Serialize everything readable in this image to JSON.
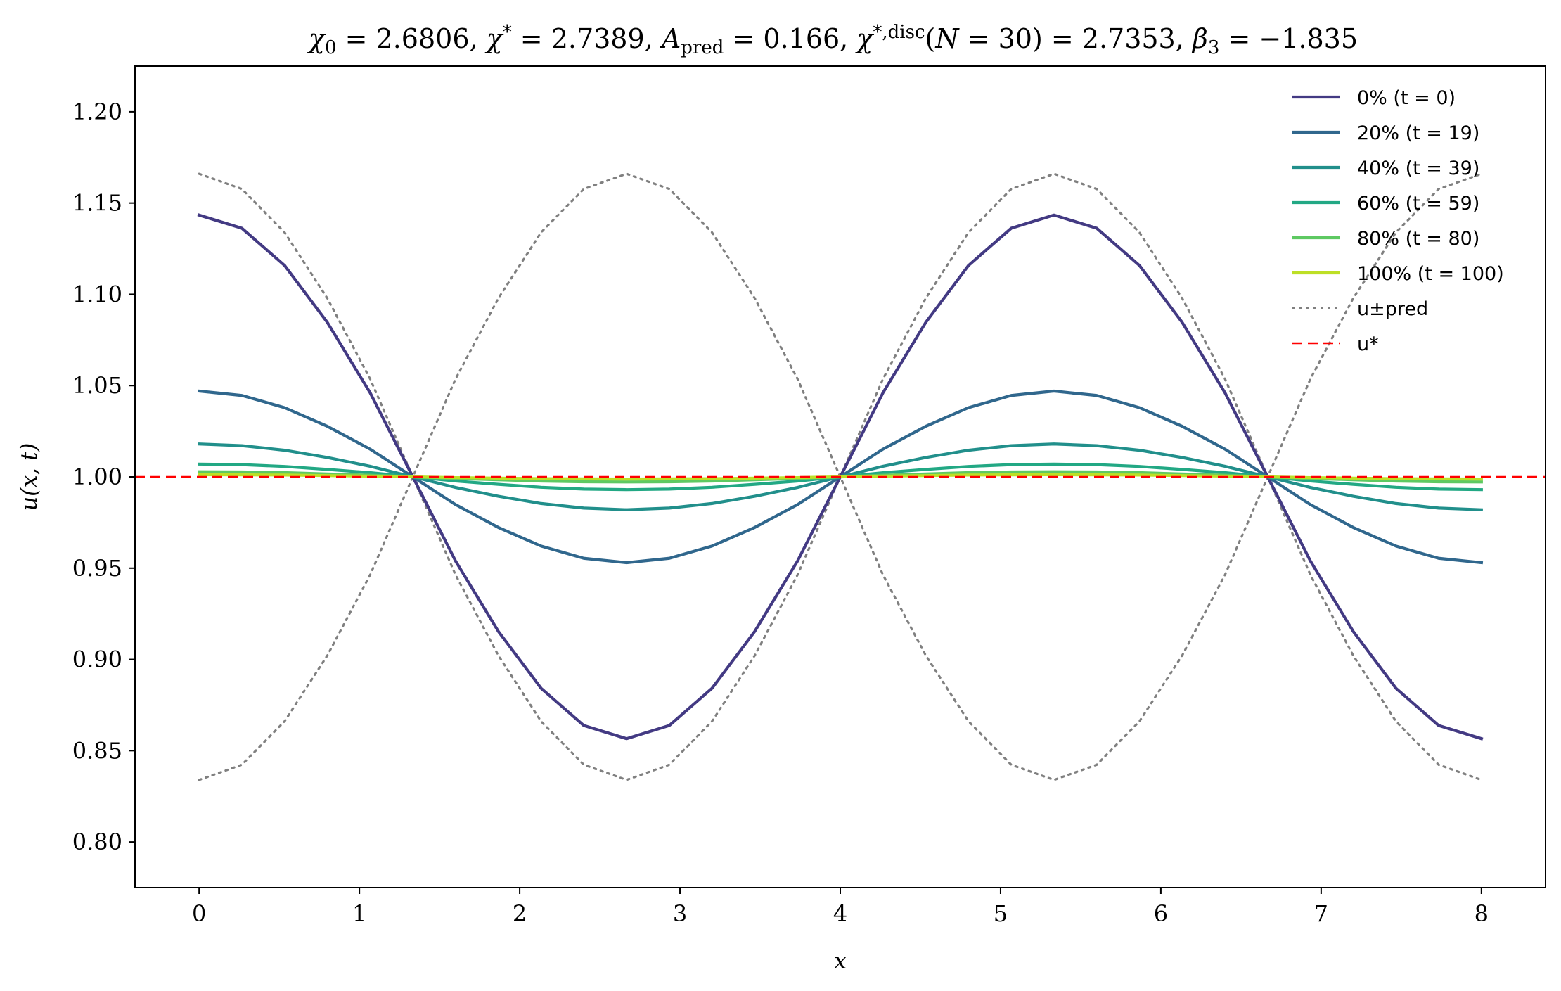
{
  "chart_data": {
    "type": "line",
    "title": "χ₀ = 2.6806,  χ* = 2.7389,  A_pred = 0.166,  χ*,disc(N = 30) = 2.7353,  β₃ = −1.835",
    "xlabel": "x",
    "ylabel": "u(x, t)",
    "xlim": [
      -0.4,
      8.4
    ],
    "ylim": [
      0.775,
      1.225
    ],
    "xticks": [
      0,
      1,
      2,
      3,
      4,
      5,
      6,
      7,
      8
    ],
    "yticks": [
      0.8,
      0.85,
      0.9,
      0.95,
      1.0,
      1.05,
      1.1,
      1.15,
      1.2
    ],
    "ytick_labels": [
      "0.80",
      "0.85",
      "0.90",
      "0.95",
      "1.00",
      "1.05",
      "1.10",
      "1.15",
      "1.20"
    ],
    "grid": false,
    "legend_position": "top-right",
    "x": [
      0,
      0.2667,
      0.5333,
      0.8,
      1.0667,
      1.3333,
      1.6,
      1.8667,
      2.1333,
      2.4,
      2.6667,
      2.9333,
      3.2,
      3.4667,
      3.7333,
      4.0,
      4.2667,
      4.5333,
      4.8,
      5.0667,
      5.3333,
      5.6,
      5.8667,
      6.1333,
      6.4,
      6.6667,
      6.9333,
      7.2,
      7.4667,
      7.7333,
      8.0
    ],
    "series": [
      {
        "name": "0% (t = 0)",
        "color": "#433a83",
        "style": "solid",
        "values": [
          1.1434,
          1.1362,
          1.1158,
          1.0846,
          1.0461,
          1.0,
          0.9539,
          0.9154,
          0.8842,
          0.8638,
          0.8566,
          0.8638,
          0.8842,
          0.9154,
          0.9539,
          1.0,
          1.0461,
          1.0846,
          1.1158,
          1.1362,
          1.1434,
          1.1362,
          1.1158,
          1.0846,
          1.0461,
          1.0,
          0.9539,
          0.9154,
          0.8842,
          0.8638,
          0.8566
        ]
      },
      {
        "name": "20% (t = 19)",
        "color": "#30678d",
        "style": "solid",
        "values": [
          1.047,
          1.0446,
          1.0379,
          1.0277,
          1.0152,
          1.0,
          0.9848,
          0.9723,
          0.9621,
          0.9554,
          0.953,
          0.9554,
          0.9621,
          0.9723,
          0.9848,
          1.0,
          1.0152,
          1.0277,
          1.0379,
          1.0446,
          1.047,
          1.0446,
          1.0379,
          1.0277,
          1.0152,
          1.0,
          0.9848,
          0.9723,
          0.9621,
          0.9554,
          0.953
        ]
      },
      {
        "name": "40% (t = 39)",
        "color": "#218f8b",
        "style": "solid",
        "values": [
          1.018,
          1.0171,
          1.0146,
          1.0106,
          1.0058,
          1.0,
          0.9942,
          0.9894,
          0.9854,
          0.9829,
          0.982,
          0.9829,
          0.9854,
          0.9894,
          0.9942,
          1.0,
          1.0058,
          1.0106,
          1.0146,
          1.0171,
          1.018,
          1.0171,
          1.0146,
          1.0106,
          1.0058,
          1.0,
          0.9942,
          0.9894,
          0.9854,
          0.9829,
          0.982
        ]
      },
      {
        "name": "60% (t = 59)",
        "color": "#22a884",
        "style": "solid",
        "values": [
          1.007,
          1.0067,
          1.0057,
          1.0041,
          1.0023,
          1.0,
          0.9977,
          0.9959,
          0.9943,
          0.9933,
          0.993,
          0.9933,
          0.9943,
          0.9959,
          0.9977,
          1.0,
          1.0023,
          1.0041,
          1.0057,
          1.0067,
          1.007,
          1.0067,
          1.0057,
          1.0041,
          1.0023,
          1.0,
          0.9977,
          0.9959,
          0.9943,
          0.9933,
          0.993
        ]
      },
      {
        "name": "80% (t = 80)",
        "color": "#5ec962",
        "style": "solid",
        "values": [
          1.0028,
          1.0027,
          1.0023,
          1.0016,
          1.0009,
          1.0,
          0.9991,
          0.9984,
          0.9977,
          0.9973,
          0.9972,
          0.9973,
          0.9977,
          0.9984,
          0.9991,
          1.0,
          1.0009,
          1.0016,
          1.0023,
          1.0027,
          1.0028,
          1.0027,
          1.0023,
          1.0016,
          1.0009,
          1.0,
          0.9991,
          0.9984,
          0.9977,
          0.9973,
          0.9972
        ]
      },
      {
        "name": "100% (t = 100)",
        "color": "#bddf26",
        "style": "solid",
        "values": [
          1.0012,
          1.0011,
          1.001,
          1.0007,
          1.0004,
          1.0,
          0.9996,
          0.9993,
          0.999,
          0.9989,
          0.9988,
          0.9989,
          0.999,
          0.9993,
          0.9996,
          1.0,
          1.0004,
          1.0007,
          1.001,
          1.0011,
          1.0012,
          1.0011,
          1.001,
          1.0007,
          1.0004,
          1.0,
          0.9996,
          0.9993,
          0.999,
          0.9989,
          0.9988
        ]
      },
      {
        "name": "u±pred",
        "color": "#808080",
        "style": "dotted",
        "band": "upper",
        "values": [
          1.166,
          1.1577,
          1.1339,
          1.0978,
          1.0537,
          1.0,
          0.9463,
          0.9022,
          0.8661,
          0.8423,
          0.834,
          0.8423,
          0.8661,
          0.9022,
          0.9463,
          1.0,
          1.0537,
          1.0978,
          1.1339,
          1.1577,
          1.166,
          1.1577,
          1.1339,
          1.0978,
          1.0537,
          1.0,
          0.9463,
          0.9022,
          0.8661,
          0.8423,
          0.834
        ]
      },
      {
        "name": "u±pred",
        "color": "#808080",
        "style": "dotted",
        "band": "lower",
        "values": [
          0.834,
          0.8423,
          0.8661,
          0.9022,
          0.9463,
          1.0,
          1.0537,
          1.0978,
          1.1339,
          1.1577,
          1.166,
          1.1577,
          1.1339,
          1.0978,
          1.0537,
          1.0,
          0.9463,
          0.9022,
          0.8661,
          0.8423,
          0.834,
          0.8423,
          0.8661,
          0.9022,
          0.9463,
          1.0,
          1.0537,
          1.0978,
          1.1339,
          1.1577,
          1.166
        ]
      },
      {
        "name": "u*",
        "color": "#ff0000",
        "style": "dashed",
        "hline": 1.0
      }
    ],
    "legend": [
      {
        "label": "0% (t = 0)",
        "color": "#433a83",
        "style": "solid"
      },
      {
        "label": "20% (t = 19)",
        "color": "#30678d",
        "style": "solid"
      },
      {
        "label": "40% (t = 39)",
        "color": "#218f8b",
        "style": "solid"
      },
      {
        "label": "60% (t = 59)",
        "color": "#22a884",
        "style": "solid"
      },
      {
        "label": "80% (t = 80)",
        "color": "#5ec962",
        "style": "solid"
      },
      {
        "label": "100% (t = 100)",
        "color": "#bddf26",
        "style": "solid"
      },
      {
        "label": "u±pred",
        "color": "#808080",
        "style": "dotted"
      },
      {
        "label": "u*",
        "color": "#ff0000",
        "style": "dashed"
      }
    ]
  }
}
